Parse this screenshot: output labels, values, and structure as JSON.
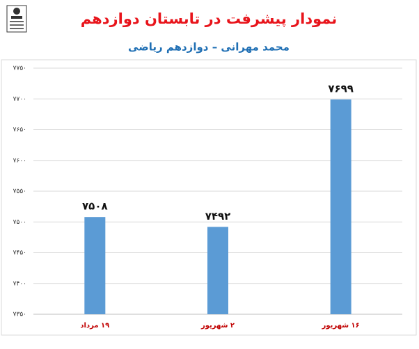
{
  "chart_data": {
    "type": "bar",
    "title": "نمودار پیشرفت در تابستان دوازدهم",
    "subtitle": "محمد مهرانی – دوازدهم ریاضی",
    "categories": [
      "۱۹ مرداد",
      "۲ شهریور",
      "۱۶ شهریور"
    ],
    "values": [
      7508,
      7492,
      7699
    ],
    "value_labels": [
      "۷۵۰۸",
      "۷۴۹۲",
      "۷۶۹۹"
    ],
    "color": "#5b9bd5",
    "ylim": [
      7350,
      7750
    ],
    "yticks": [
      {
        "value": 7350,
        "label": "۷۳۵۰"
      },
      {
        "value": 7400,
        "label": "۷۴۰۰"
      },
      {
        "value": 7450,
        "label": "۷۴۵۰"
      },
      {
        "value": 7500,
        "label": "۷۵۰۰"
      },
      {
        "value": 7550,
        "label": "۷۵۵۰"
      },
      {
        "value": 7600,
        "label": "۷۶۰۰"
      },
      {
        "value": 7650,
        "label": "۷۶۵۰"
      },
      {
        "value": 7700,
        "label": "۷۷۰۰"
      },
      {
        "value": 7750,
        "label": "۷۷۵۰"
      }
    ],
    "grid": true
  }
}
